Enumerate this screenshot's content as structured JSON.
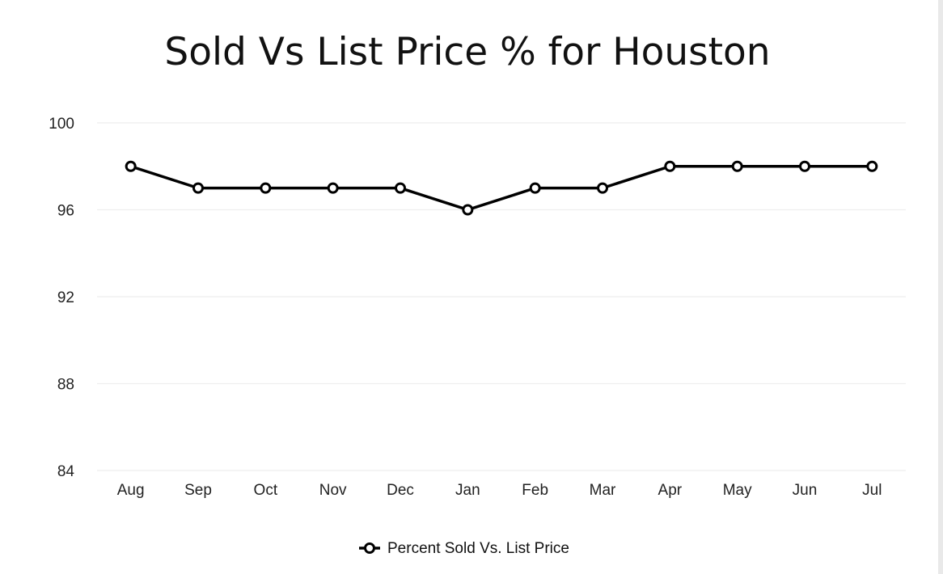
{
  "chart_data": {
    "type": "line",
    "title": "Sold Vs List Price % for Houston",
    "xlabel": "",
    "ylabel": "",
    "categories": [
      "Aug",
      "Sep",
      "Oct",
      "Nov",
      "Dec",
      "Jan",
      "Feb",
      "Mar",
      "Apr",
      "May",
      "Jun",
      "Jul"
    ],
    "series": [
      {
        "name": "Percent Sold Vs. List Price",
        "values": [
          98,
          97,
          97,
          97,
          97,
          96,
          97,
          97,
          98,
          98,
          98,
          98
        ],
        "color": "#000000",
        "marker": "hollow-circle"
      }
    ],
    "ylim": [
      84,
      100
    ],
    "yticks": [
      84,
      88,
      92,
      96,
      100
    ],
    "grid": true,
    "legend": "bottom-center",
    "colors": {
      "line": "#000000",
      "grid": "#eeeeee",
      "background": "#ffffff"
    }
  }
}
